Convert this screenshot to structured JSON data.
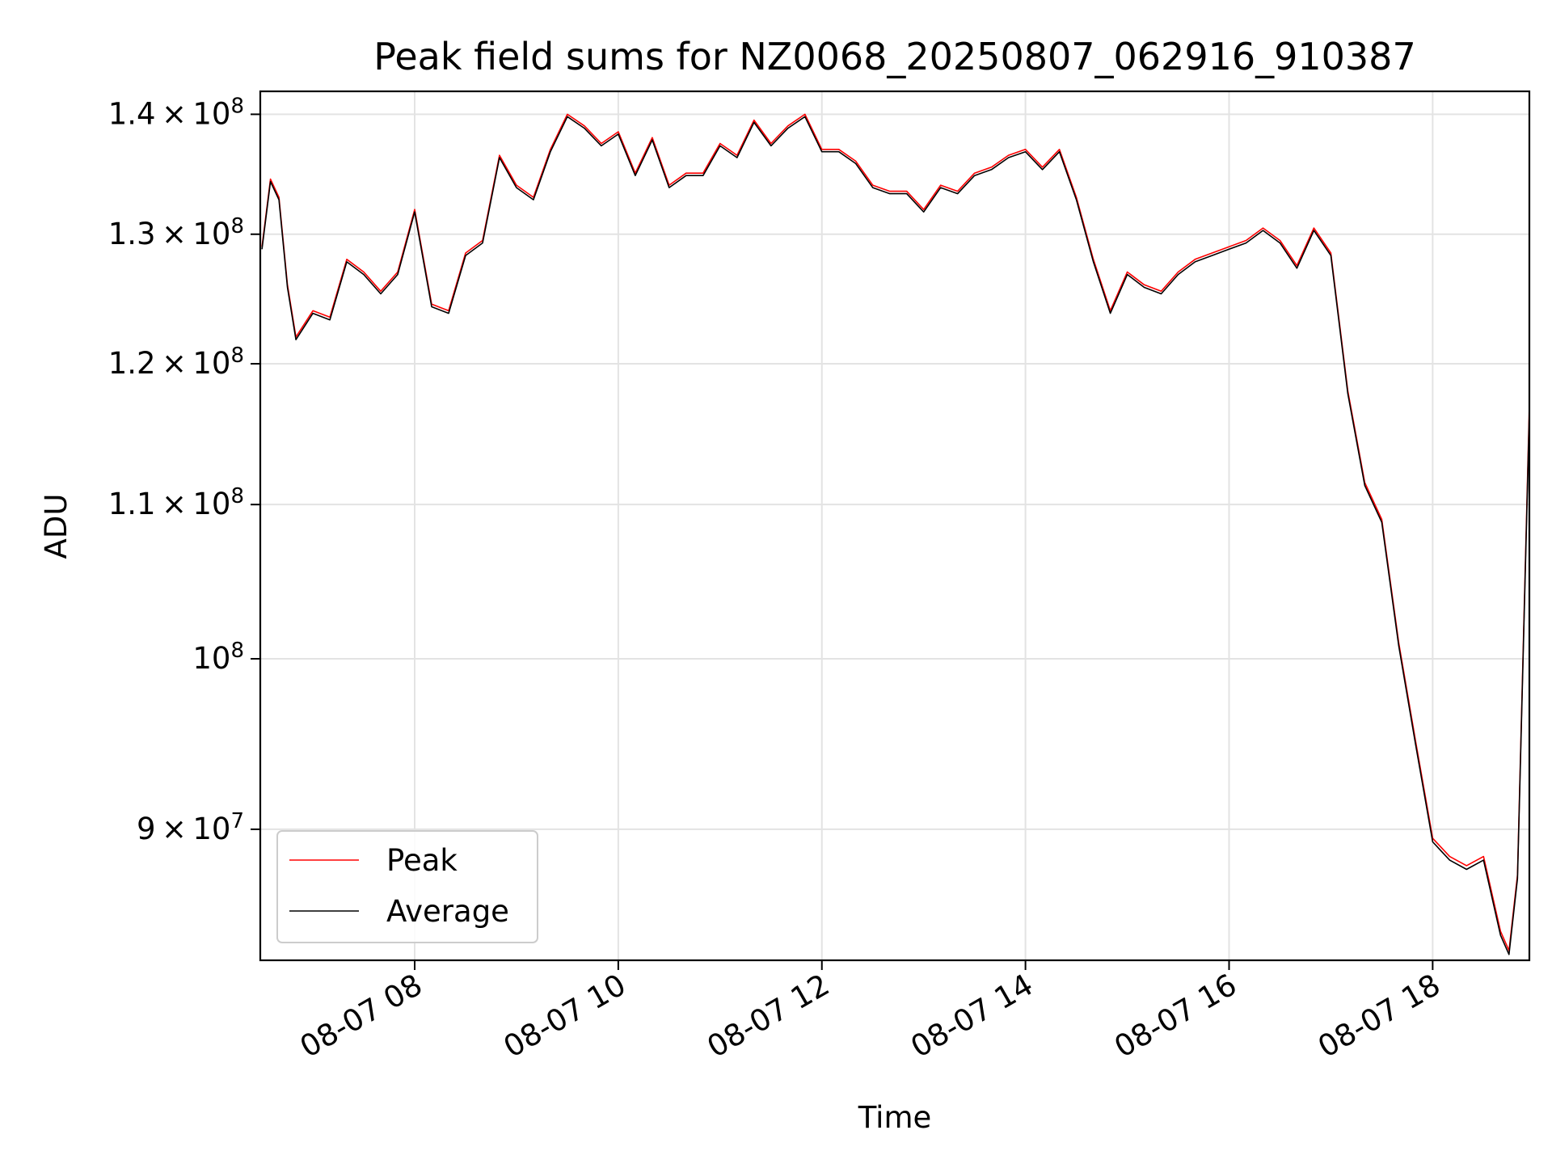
{
  "chart_data": {
    "type": "line",
    "title": "Peak field sums for NZ0068_20250807_062916_910387",
    "xlabel": "Time",
    "ylabel": "ADU",
    "yscale": "log",
    "grid": true,
    "legend_position": "lower-left",
    "xlim": [
      "2025-08-07 06:29",
      "2025-08-07 18:57"
    ],
    "ylim": [
      83000000,
      142000000
    ],
    "x_ticks": [
      {
        "value": "2025-08-07 08:00",
        "label": "08-07 08"
      },
      {
        "value": "2025-08-07 10:00",
        "label": "08-07 10"
      },
      {
        "value": "2025-08-07 12:00",
        "label": "08-07 12"
      },
      {
        "value": "2025-08-07 14:00",
        "label": "08-07 14"
      },
      {
        "value": "2025-08-07 16:00",
        "label": "08-07 16"
      },
      {
        "value": "2025-08-07 18:00",
        "label": "08-07 18"
      }
    ],
    "y_ticks": [
      {
        "value": 90000000,
        "mantissa": "9",
        "exponent": "7"
      },
      {
        "value": 100000000,
        "mantissa": "",
        "exponent": "8"
      },
      {
        "value": 110000000,
        "mantissa": "1.1",
        "exponent": "8"
      },
      {
        "value": 120000000,
        "mantissa": "1.2",
        "exponent": "8"
      },
      {
        "value": 130000000,
        "mantissa": "1.3",
        "exponent": "8"
      },
      {
        "value": 140000000,
        "mantissa": "1.4",
        "exponent": "8"
      }
    ],
    "x": [
      "06:30",
      "06:35",
      "06:40",
      "06:45",
      "06:50",
      "07:00",
      "07:10",
      "07:20",
      "07:30",
      "07:40",
      "07:50",
      "08:00",
      "08:10",
      "08:20",
      "08:30",
      "08:40",
      "08:50",
      "09:00",
      "09:10",
      "09:20",
      "09:30",
      "09:40",
      "09:50",
      "10:00",
      "10:10",
      "10:20",
      "10:30",
      "10:40",
      "10:50",
      "11:00",
      "11:10",
      "11:20",
      "11:30",
      "11:40",
      "11:50",
      "12:00",
      "12:10",
      "12:20",
      "12:30",
      "12:40",
      "12:50",
      "13:00",
      "13:10",
      "13:20",
      "13:30",
      "13:40",
      "13:50",
      "14:00",
      "14:10",
      "14:20",
      "14:30",
      "14:40",
      "14:50",
      "15:00",
      "15:10",
      "15:20",
      "15:30",
      "15:40",
      "15:50",
      "16:00",
      "16:10",
      "16:20",
      "16:30",
      "16:40",
      "16:50",
      "17:00",
      "17:10",
      "17:20",
      "17:30",
      "17:40",
      "17:50",
      "18:00",
      "18:10",
      "18:20",
      "18:30",
      "18:40",
      "18:45",
      "18:50",
      "18:57"
    ],
    "series": [
      {
        "name": "Peak",
        "color": "#ff0000",
        "values": [
          129000000,
          134500000,
          133000000,
          126000000,
          122000000,
          124000000,
          123500000,
          128000000,
          127000000,
          125500000,
          127000000,
          132000000,
          124500000,
          124000000,
          128500000,
          129500000,
          136500000,
          134000000,
          133000000,
          137000000,
          140000000,
          139000000,
          137500000,
          138500000,
          135000000,
          138000000,
          134000000,
          135000000,
          135000000,
          137500000,
          136500000,
          139500000,
          137500000,
          139000000,
          140000000,
          137000000,
          137000000,
          136000000,
          134000000,
          133500000,
          133500000,
          132000000,
          134000000,
          133500000,
          135000000,
          135500000,
          136500000,
          137000000,
          135500000,
          137000000,
          133000000,
          128000000,
          124000000,
          127000000,
          126000000,
          125500000,
          127000000,
          128000000,
          128500000,
          129000000,
          129500000,
          130500000,
          129500000,
          127500000,
          130500000,
          128500000,
          118000000,
          111500000,
          109000000,
          101000000,
          95000000,
          89500000,
          88500000,
          88000000,
          88500000,
          84500000,
          83500000,
          87500000,
          117000000
        ]
      },
      {
        "name": "Average",
        "color": "#000000",
        "values": [
          128800000,
          134300000,
          132800000,
          125800000,
          121800000,
          123800000,
          123300000,
          127800000,
          126800000,
          125300000,
          126800000,
          131800000,
          124300000,
          123800000,
          128300000,
          129300000,
          136300000,
          133800000,
          132800000,
          136800000,
          139800000,
          138800000,
          137300000,
          138300000,
          134800000,
          137800000,
          133800000,
          134800000,
          134800000,
          137300000,
          136300000,
          139300000,
          137300000,
          138800000,
          139800000,
          136800000,
          136800000,
          135800000,
          133800000,
          133300000,
          133300000,
          131800000,
          133800000,
          133300000,
          134800000,
          135300000,
          136300000,
          136800000,
          135300000,
          136800000,
          132800000,
          127800000,
          123800000,
          126800000,
          125800000,
          125300000,
          126800000,
          127800000,
          128300000,
          128800000,
          129300000,
          130300000,
          129300000,
          127300000,
          130300000,
          128300000,
          117800000,
          111300000,
          108800000,
          100800000,
          94800000,
          89300000,
          88300000,
          87800000,
          88300000,
          84300000,
          83300000,
          87300000,
          116500000
        ]
      }
    ]
  }
}
